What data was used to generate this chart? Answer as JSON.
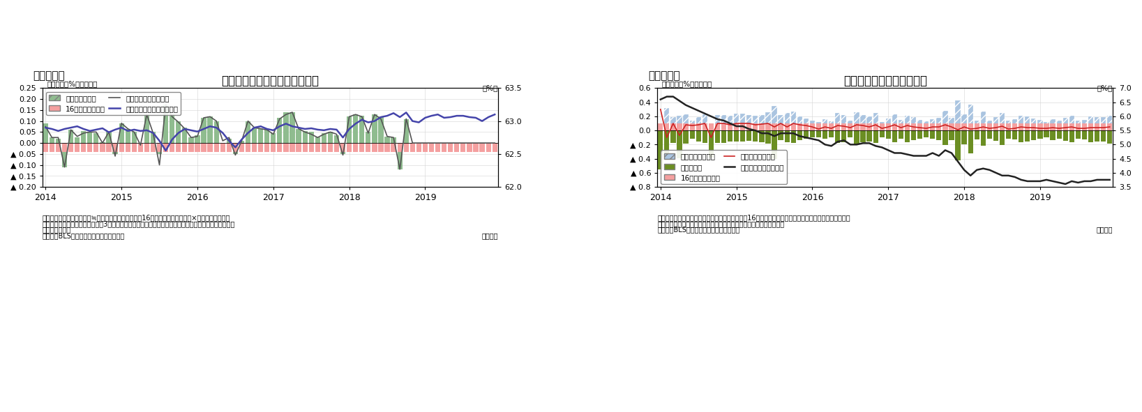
{
  "fig5": {
    "title": "労働参加率の変化（要因分解）",
    "header": "（図表５）",
    "ylabel_left": "（前月差、%ポイント）",
    "ylabel_right": "（%）",
    "ylim_left": [
      -0.2,
      0.25
    ],
    "ylim_right": [
      62.0,
      63.5
    ],
    "yticks_left": [
      0.25,
      0.2,
      0.15,
      0.1,
      0.05,
      0.0,
      -0.05,
      -0.1,
      -0.15,
      -0.2
    ],
    "ytick_labels_left": [
      "0.25",
      "0.20",
      "0.15",
      "0.10",
      "0.05",
      "0.00",
      "▲ 0.05",
      "▲ 0.10",
      "▲ 0.15",
      "▲ 0.20"
    ],
    "yticks_right": [
      63.5,
      63.0,
      62.5,
      62.0
    ],
    "note1": "（注）労働参加率の前月差≒（労働力人口の伸び率－16才以上人口の伸び率）×前月の労働参加率",
    "note2": "　　グラフの前月差データは後方3カ月移動平均。また、年次ごとに人口推計が変更になっているため、",
    "note3": "　　断層を調整",
    "source": "（資料）BLSよりニッセイ基礎研究所作成",
    "monthly": "（月次）",
    "legend": [
      "労働力人口要因",
      "16才以上人口要因",
      "労働参加率（前月差）",
      "労働参加率（水準、右軸）"
    ],
    "bar_color_labor": "#8fbc8f",
    "bar_color_pop": "#f4a0a0",
    "line_color_mom": "#555555",
    "line_color_level": "#4444aa",
    "xticklabels": [
      "2014",
      "2015",
      "2016",
      "2017",
      "2018",
      "2019"
    ],
    "labor_factor": [
      0.09,
      0.025,
      0.02,
      -0.11,
      0.06,
      0.025,
      0.055,
      0.05,
      0.045,
      0.005,
      0.05,
      -0.05,
      0.09,
      0.065,
      0.05,
      -0.01,
      0.13,
      0.05,
      -0.05,
      0.175,
      0.13,
      0.1,
      0.07,
      0.025,
      0.035,
      0.115,
      0.12,
      0.1,
      0.0,
      0.02,
      -0.05,
      0.01,
      0.1,
      0.07,
      0.065,
      0.06,
      0.045,
      0.115,
      0.14,
      0.14,
      0.065,
      0.055,
      0.05,
      0.025,
      0.045,
      0.05,
      0.035,
      -0.05,
      0.12,
      0.13,
      0.125,
      0.05,
      0.13,
      0.12,
      0.03,
      0.025,
      -0.12,
      0.11,
      0.0,
      0.0,
      0.0,
      0.0,
      0.0,
      0.0,
      0.0,
      0.0,
      0.0,
      0.0,
      0.0,
      0.0,
      0.0,
      0.0
    ],
    "pop_factor": [
      -0.04,
      -0.04,
      -0.04,
      -0.04,
      -0.04,
      -0.04,
      -0.04,
      -0.04,
      -0.04,
      -0.04,
      -0.04,
      -0.04,
      -0.04,
      -0.04,
      -0.04,
      -0.04,
      -0.04,
      -0.04,
      -0.04,
      -0.04,
      -0.04,
      -0.04,
      -0.04,
      -0.04,
      -0.04,
      -0.04,
      -0.04,
      -0.04,
      -0.04,
      -0.04,
      -0.04,
      -0.04,
      -0.04,
      -0.04,
      -0.04,
      -0.04,
      -0.04,
      -0.04,
      -0.04,
      -0.04,
      -0.04,
      -0.04,
      -0.04,
      -0.04,
      -0.04,
      -0.04,
      -0.04,
      -0.04,
      -0.04,
      -0.04,
      -0.04,
      -0.04,
      -0.04,
      -0.04,
      -0.04,
      -0.04,
      -0.04,
      -0.04,
      -0.04,
      -0.04,
      -0.04,
      -0.04,
      -0.04,
      -0.04,
      -0.04,
      -0.04,
      -0.04,
      -0.04,
      -0.04,
      -0.04,
      -0.04,
      -0.04
    ],
    "line_mom": [
      0.075,
      0.025,
      0.025,
      -0.11,
      0.06,
      0.03,
      0.045,
      0.05,
      0.05,
      0.0,
      0.05,
      -0.06,
      0.09,
      0.065,
      0.05,
      -0.01,
      0.13,
      0.045,
      -0.1,
      0.175,
      0.12,
      0.095,
      0.065,
      0.025,
      0.03,
      0.115,
      0.12,
      0.1,
      0.01,
      0.025,
      -0.055,
      0.01,
      0.1,
      0.07,
      0.065,
      0.06,
      0.04,
      0.11,
      0.13,
      0.14,
      0.065,
      0.05,
      0.04,
      0.025,
      0.04,
      0.05,
      0.04,
      -0.055,
      0.12,
      0.13,
      0.12,
      0.045,
      0.13,
      0.11,
      0.03,
      0.025,
      -0.12,
      0.11,
      0.0,
      0.0,
      0.0,
      0.0,
      0.0,
      0.0,
      0.0,
      0.0,
      0.0,
      0.0,
      0.0,
      0.0,
      0.0,
      0.0
    ],
    "line_level": [
      62.9,
      62.88,
      62.85,
      62.88,
      62.9,
      62.92,
      62.88,
      62.85,
      62.87,
      62.89,
      62.83,
      62.87,
      62.9,
      62.85,
      62.87,
      62.85,
      62.86,
      62.82,
      62.7,
      62.55,
      62.72,
      62.82,
      62.88,
      62.86,
      62.84,
      62.88,
      62.92,
      62.9,
      62.82,
      62.7,
      62.6,
      62.72,
      62.82,
      62.9,
      62.92,
      62.88,
      62.86,
      62.92,
      62.96,
      62.92,
      62.9,
      62.88,
      62.89,
      62.87,
      62.86,
      62.88,
      62.87,
      62.75,
      62.88,
      62.96,
      63.02,
      62.98,
      63.0,
      63.06,
      63.08,
      63.12,
      63.06,
      63.13,
      63.0,
      62.98,
      63.05,
      63.08,
      63.1,
      63.05,
      63.06,
      63.08,
      63.08,
      63.06,
      63.05,
      63.0,
      63.06,
      63.1
    ]
  },
  "fig6": {
    "title": "失業率の変化（要因分解）",
    "header": "（図表６）",
    "ylabel_left": "（前月差、%ポイント）",
    "ylabel_right": "（%）",
    "ylim_left": [
      -0.8,
      0.6
    ],
    "ylim_right": [
      3.5,
      7.0
    ],
    "yticks_left": [
      0.6,
      0.4,
      0.2,
      0.0,
      -0.2,
      -0.4,
      -0.6,
      -0.8
    ],
    "ytick_labels_left": [
      "0.6",
      "0.4",
      "0.2",
      "0.0",
      "▲ 0.2",
      "▲ 0.4",
      "▲ 0.6",
      "▲ 0.8"
    ],
    "yticks_right": [
      7.0,
      6.5,
      6.0,
      5.5,
      5.0,
      4.5,
      4.0,
      3.5
    ],
    "note1": "（注）非労働力人口の増加、就業者人口の増加、16才以上人口の減少が、それぞれ失業率の改善要因。",
    "note2": "　　また、年次ごとに人口推計が変更になっているため、断層を調整",
    "source": "（資料）BLSよりニッセイ基礎研究所作成",
    "monthly": "（月次）",
    "legend": [
      "非労働力人口要因",
      "就業者要因",
      "16才以上人口要因",
      "失業率（前月差）",
      "失業率（水準、右軸）"
    ],
    "bar_color_nonlabor": "#aac4e0",
    "bar_color_employed": "#6b8e23",
    "bar_color_pop": "#f4a0a0",
    "line_color_mom": "#cc2222",
    "line_color_level": "#222222",
    "xticklabels": [
      "2014",
      "2015",
      "2016",
      "2017",
      "2018",
      "2019"
    ],
    "nonlabor_factor": [
      -0.18,
      0.32,
      0.19,
      0.21,
      0.23,
      0.14,
      0.19,
      0.23,
      -0.24,
      0.22,
      0.22,
      0.21,
      0.24,
      0.24,
      0.22,
      0.21,
      0.22,
      0.26,
      0.35,
      0.22,
      0.25,
      0.27,
      0.2,
      0.17,
      0.14,
      0.12,
      0.16,
      0.13,
      0.25,
      0.22,
      0.14,
      0.26,
      0.22,
      0.2,
      0.25,
      0.12,
      0.17,
      0.23,
      0.15,
      0.21,
      0.19,
      0.15,
      0.13,
      0.16,
      0.18,
      0.28,
      0.18,
      0.43,
      0.23,
      0.37,
      0.14,
      0.27,
      0.14,
      0.19,
      0.25,
      0.14,
      0.16,
      0.21,
      0.2,
      0.17,
      0.15,
      0.12,
      0.16,
      0.14,
      0.18,
      0.21,
      0.14,
      0.15,
      0.2,
      0.19,
      0.19,
      0.21
    ],
    "employed_factor": [
      -0.55,
      -0.35,
      -0.18,
      -0.39,
      -0.19,
      -0.12,
      -0.16,
      -0.18,
      -0.38,
      -0.18,
      -0.18,
      -0.16,
      -0.16,
      -0.16,
      -0.15,
      -0.16,
      -0.17,
      -0.19,
      -0.4,
      -0.14,
      -0.17,
      -0.18,
      -0.14,
      -0.12,
      -0.1,
      -0.1,
      -0.12,
      -0.1,
      -0.18,
      -0.17,
      -0.1,
      -0.2,
      -0.17,
      -0.16,
      -0.18,
      -0.1,
      -0.12,
      -0.17,
      -0.12,
      -0.17,
      -0.14,
      -0.12,
      -0.1,
      -0.12,
      -0.14,
      -0.21,
      -0.14,
      -0.42,
      -0.2,
      -0.33,
      -0.13,
      -0.22,
      -0.12,
      -0.15,
      -0.21,
      -0.12,
      -0.13,
      -0.17,
      -0.16,
      -0.14,
      -0.12,
      -0.1,
      -0.14,
      -0.12,
      -0.15,
      -0.17,
      -0.12,
      -0.13,
      -0.17,
      -0.16,
      -0.16,
      -0.19
    ],
    "pop_factor": [
      0.1,
      0.1,
      0.1,
      0.1,
      0.1,
      0.1,
      0.1,
      0.1,
      0.1,
      0.1,
      0.1,
      0.1,
      0.1,
      0.1,
      0.1,
      0.1,
      0.1,
      0.1,
      0.1,
      0.1,
      0.1,
      0.1,
      0.1,
      0.1,
      0.1,
      0.1,
      0.1,
      0.1,
      0.1,
      0.1,
      0.1,
      0.1,
      0.1,
      0.1,
      0.1,
      0.1,
      0.1,
      0.1,
      0.1,
      0.1,
      0.1,
      0.1,
      0.1,
      0.1,
      0.1,
      0.1,
      0.1,
      0.1,
      0.1,
      0.1,
      0.1,
      0.1,
      0.1,
      0.1,
      0.1,
      0.1,
      0.1,
      0.1,
      0.1,
      0.1,
      0.1,
      0.1,
      0.1,
      0.1,
      0.1,
      0.1,
      0.1,
      0.1,
      0.1,
      0.1,
      0.1,
      0.1
    ],
    "line_mom": [
      0.3,
      -0.1,
      0.1,
      -0.07,
      0.08,
      0.07,
      0.08,
      0.1,
      -0.1,
      0.1,
      0.1,
      0.08,
      0.1,
      0.1,
      0.1,
      0.08,
      0.09,
      0.1,
      0.05,
      0.1,
      0.05,
      0.1,
      0.08,
      0.07,
      0.05,
      0.02,
      0.05,
      0.03,
      0.07,
      0.06,
      0.04,
      0.08,
      0.07,
      0.05,
      0.08,
      0.03,
      0.05,
      0.08,
      0.04,
      0.07,
      0.05,
      0.04,
      0.03,
      0.05,
      0.05,
      0.08,
      0.05,
      0.01,
      0.05,
      0.02,
      0.03,
      0.05,
      0.03,
      0.04,
      0.06,
      0.02,
      0.03,
      0.05,
      0.04,
      0.04,
      0.03,
      0.03,
      0.04,
      0.03,
      0.04,
      0.05,
      0.03,
      0.03,
      0.04,
      0.04,
      0.04,
      0.05
    ],
    "line_level": [
      6.6,
      6.7,
      6.7,
      6.55,
      6.4,
      6.3,
      6.2,
      6.1,
      6.0,
      5.9,
      5.85,
      5.75,
      5.65,
      5.65,
      5.55,
      5.5,
      5.4,
      5.4,
      5.3,
      5.4,
      5.4,
      5.4,
      5.3,
      5.25,
      5.2,
      5.15,
      5.0,
      4.95,
      5.1,
      5.15,
      5.0,
      5.0,
      5.05,
      5.05,
      4.95,
      4.9,
      4.8,
      4.7,
      4.7,
      4.65,
      4.6,
      4.6,
      4.6,
      4.7,
      4.6,
      4.8,
      4.7,
      4.4,
      4.1,
      3.9,
      4.1,
      4.15,
      4.1,
      4.0,
      3.9,
      3.9,
      3.85,
      3.75,
      3.7,
      3.7,
      3.7,
      3.75,
      3.7,
      3.65,
      3.6,
      3.7,
      3.65,
      3.7,
      3.7,
      3.75,
      3.75,
      3.75
    ]
  }
}
